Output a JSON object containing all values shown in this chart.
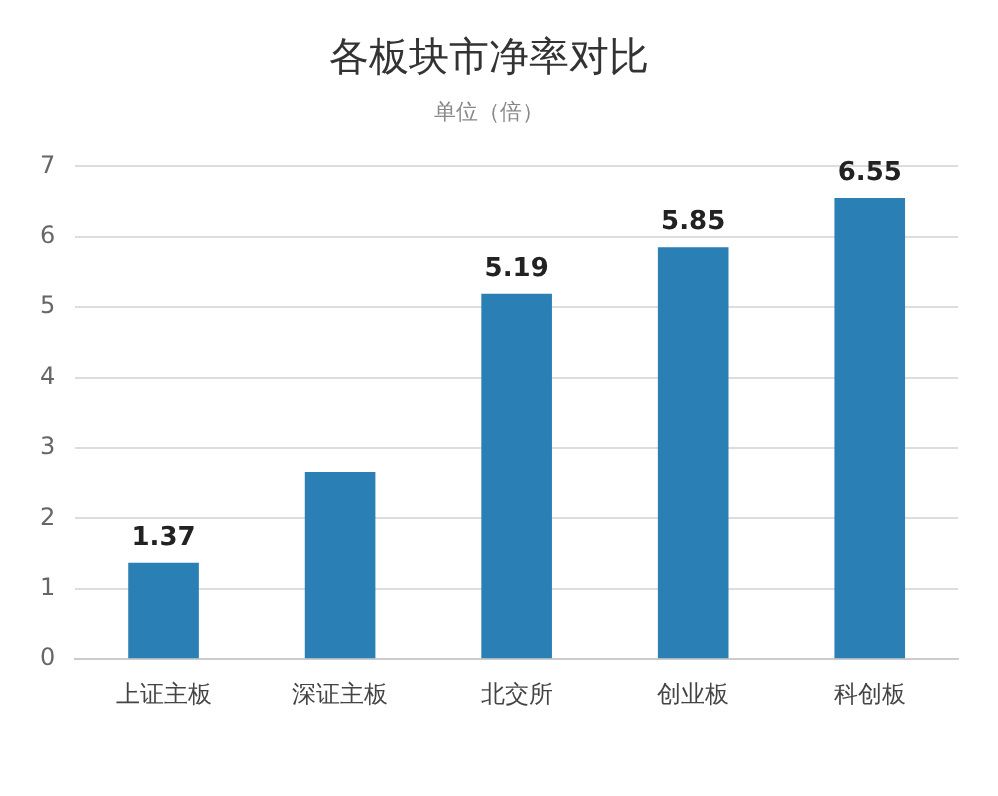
{
  "chart_data": {
    "type": "bar",
    "title": "各板块市净率对比",
    "subtitle": "单位（倍）",
    "categories": [
      "上证主板",
      "深证主板",
      "北交所",
      "创业板",
      "科创板"
    ],
    "values": [
      1.37,
      2.66,
      5.19,
      5.85,
      6.55
    ],
    "value_labels": [
      "1.37",
      null,
      "5.19",
      "5.85",
      "6.55"
    ],
    "color": "#2a7fb4",
    "ylim": [
      0,
      7
    ],
    "yticks": [
      0,
      1,
      2,
      3,
      4,
      5,
      6,
      7
    ],
    "grid": "y",
    "legend": false
  }
}
